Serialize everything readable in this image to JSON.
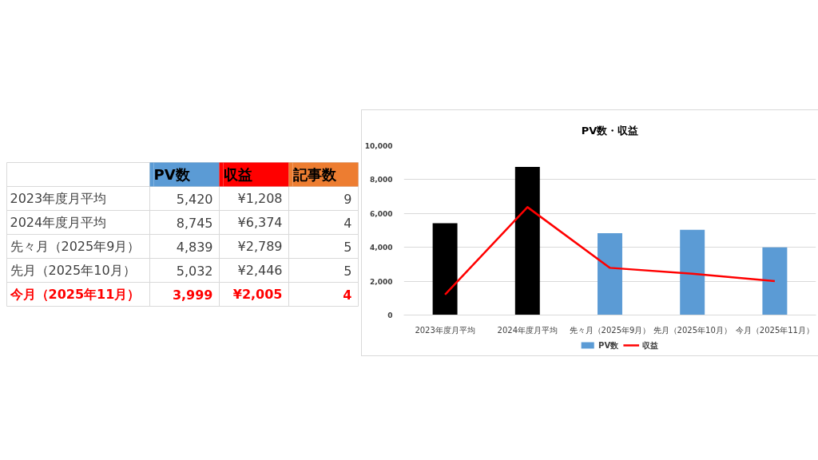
{
  "chart_data": [
    {
      "type": "other",
      "categories": [
        "2023年度月平均",
        "2024年度月平均",
        "先々月（2025年9月）",
        "先月（2025年10月）",
        "今月（2025年11月）"
      ],
      "colors": [
        "#404040",
        "#404040",
        "#404040",
        "#404040",
        "#ff0000"
      ],
      "series": [
        {
          "name": "PV数",
          "color": "#5b9bd5",
          "values": [
            5420,
            8745,
            4839,
            5032,
            3999
          ],
          "value_labels": [
            "5,420",
            "8,745",
            "4,839",
            "5,032",
            "3,999"
          ]
        },
        {
          "name": "収益",
          "color": "#ff0000",
          "values": [
            1208,
            6374,
            2789,
            2446,
            2005
          ],
          "value_labels": [
            "¥1,208",
            "¥6,374",
            "¥2,789",
            "¥2,446",
            "¥2,005"
          ]
        },
        {
          "name": "記事数",
          "color": "#ed7d31",
          "values": [
            9,
            4,
            5,
            5,
            4
          ],
          "value_labels": [
            "9",
            "4",
            "5",
            "5",
            "4"
          ]
        }
      ]
    },
    {
      "type": "bar",
      "title": "PV数・収益",
      "categories": [
        "2023年度月平均",
        "2024年度月平均",
        "先々月（2025年9月）",
        "先月（2025年10月）",
        "今月（2025年11月）"
      ],
      "series": [
        {
          "name": "PV数",
          "type": "bar",
          "color": "#5b9bd5",
          "colors": [
            "#000000",
            "#000000",
            "#5b9bd5",
            "#5b9bd5",
            "#5b9bd5"
          ],
          "values": [
            5420,
            8745,
            4839,
            5032,
            3999
          ]
        },
        {
          "name": "収益",
          "type": "line",
          "color": "#ff0000",
          "values": [
            1208,
            6374,
            2789,
            2446,
            2005
          ]
        }
      ],
      "ylim": [
        0,
        10000
      ],
      "yticks": [
        0,
        {
          "value": 2000,
          "label": "2,000"
        },
        {
          "value": 4000,
          "label": "4,000"
        },
        {
          "value": 6000,
          "label": "6,000"
        },
        {
          "value": 8000,
          "label": "8,000"
        },
        {
          "value": 10000,
          "label": "10,000"
        }
      ],
      "grid": "y",
      "legend": "bottom"
    }
  ]
}
